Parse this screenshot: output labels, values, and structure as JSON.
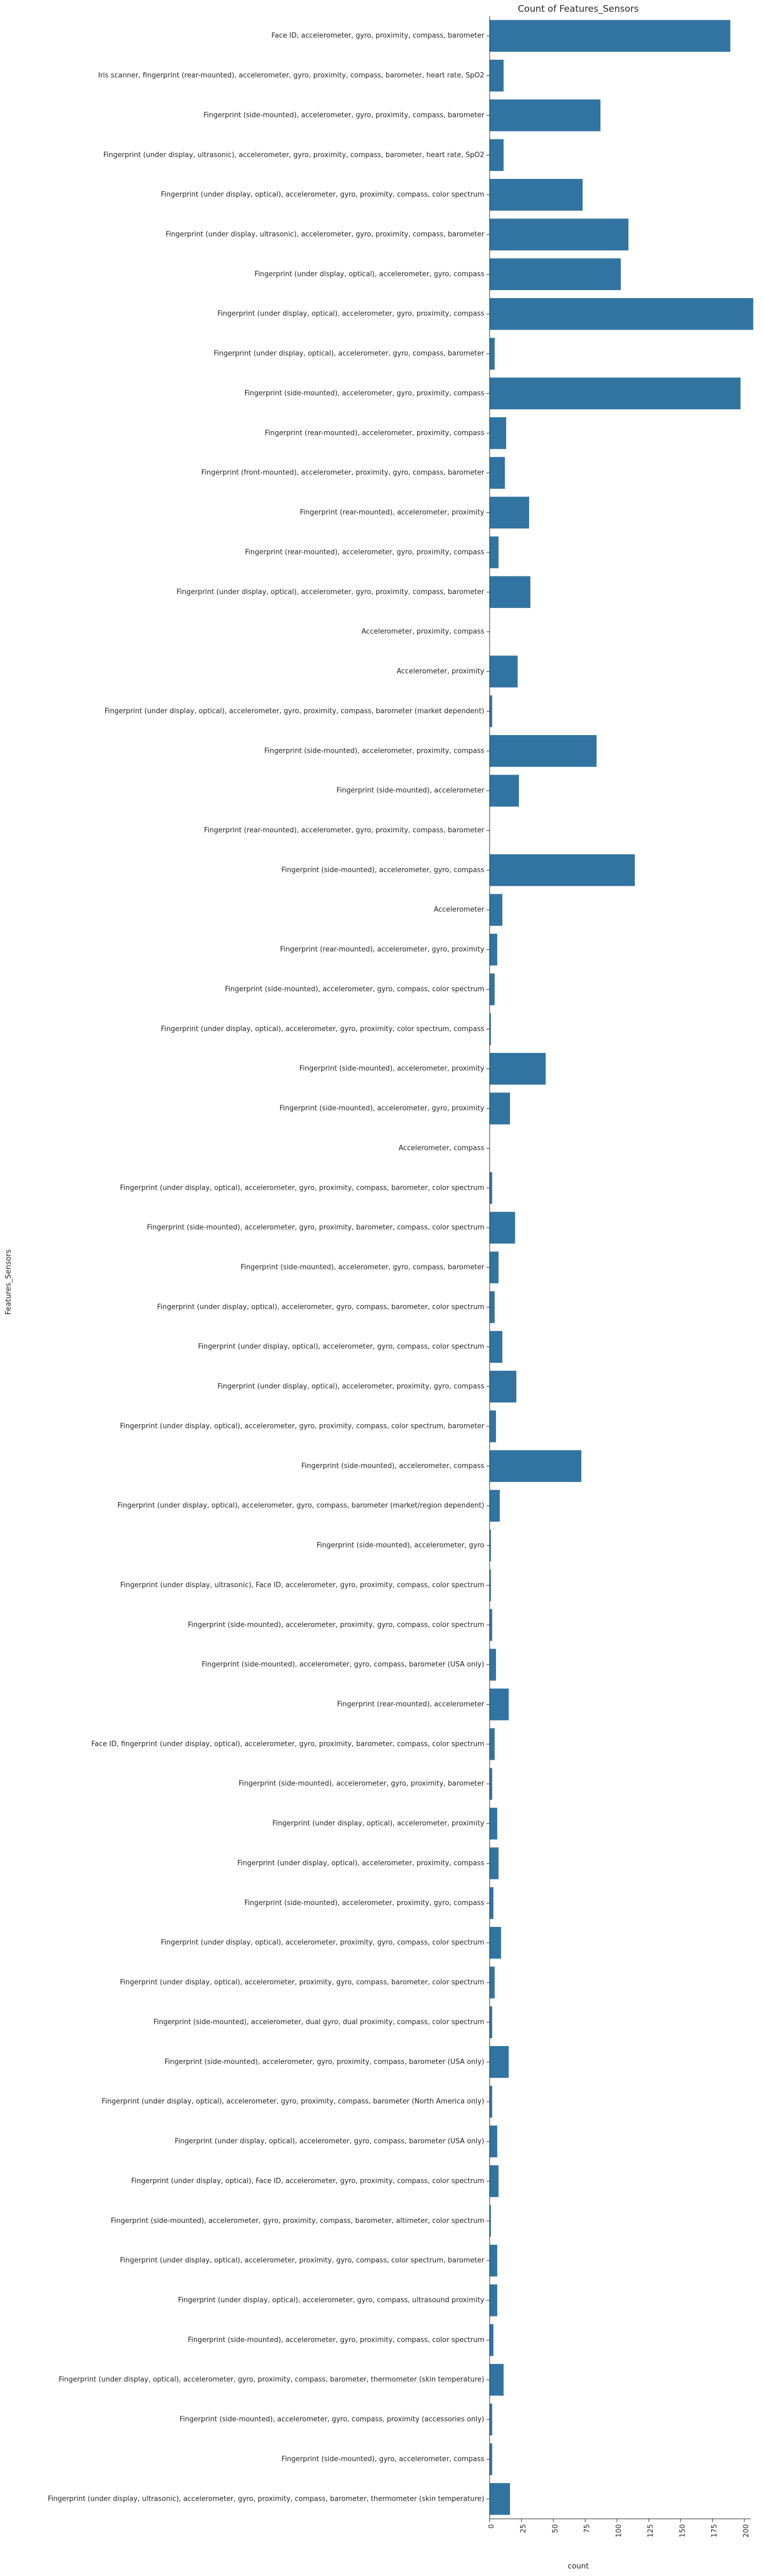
{
  "chart_data": {
    "type": "bar",
    "orientation": "horizontal",
    "title": "Count of Features_Sensors",
    "xlabel": "count",
    "ylabel": "Features_Sensors",
    "xlim": [
      0,
      205
    ],
    "xticks": [
      0,
      25,
      50,
      75,
      100,
      125,
      150,
      175,
      200
    ],
    "grid": false,
    "legend": "none",
    "bar_color": "#3274a1",
    "categories": [
      "Face ID, accelerometer, gyro, proximity, compass, barometer",
      "Iris scanner, fingerprint (rear-mounted), accelerometer, gyro, proximity, compass, barometer, heart rate, SpO2",
      "Fingerprint (side-mounted), accelerometer, gyro, proximity, compass, barometer",
      "Fingerprint (under display, ultrasonic), accelerometer, gyro, proximity, compass, barometer, heart rate, SpO2",
      "Fingerprint (under display, optical), accelerometer, gyro, proximity, compass, color spectrum",
      "Fingerprint (under display, ultrasonic), accelerometer, gyro, proximity, compass, barometer",
      "Fingerprint (under display, optical), accelerometer, gyro, compass",
      "Fingerprint (under display, optical), accelerometer, gyro, proximity, compass",
      "Fingerprint (under display, optical), accelerometer, gyro, compass, barometer",
      "Fingerprint (side-mounted), accelerometer, gyro, proximity, compass",
      "Fingerprint (rear-mounted), accelerometer, proximity, compass",
      "Fingerprint (front-mounted), accelerometer, proximity, gyro, compass, barometer",
      "Fingerprint (rear-mounted), accelerometer, proximity",
      "Fingerprint (rear-mounted), accelerometer, gyro, proximity, compass",
      "Fingerprint (under display, optical), accelerometer, gyro, proximity, compass, barometer",
      "Accelerometer, proximity, compass",
      "Accelerometer, proximity",
      "Fingerprint (under display, optical), accelerometer, gyro, proximity, compass, barometer (market dependent)",
      "Fingerprint (side-mounted), accelerometer, proximity, compass",
      "Fingerprint (side-mounted), accelerometer",
      "Fingerprint (rear-mounted), accelerometer, gyro, proximity, compass, barometer",
      "Fingerprint (side-mounted), accelerometer, gyro, compass",
      "Accelerometer",
      "Fingerprint (rear-mounted), accelerometer, gyro, proximity",
      "Fingerprint (side-mounted), accelerometer, gyro, compass, color spectrum",
      "Fingerprint (under display, optical), accelerometer, gyro, proximity, color spectrum, compass",
      "Fingerprint (side-mounted), accelerometer, proximity",
      "Fingerprint (side-mounted), accelerometer, gyro, proximity",
      "Accelerometer, compass",
      "Fingerprint (under display, optical), accelerometer, gyro, proximity, compass, barometer, color spectrum",
      "Fingerprint (side-mounted), accelerometer, gyro, proximity, barometer, compass, color spectrum",
      "Fingerprint (side-mounted), accelerometer, gyro, compass, barometer",
      "Fingerprint (under display, optical), accelerometer, gyro, compass, barometer, color spectrum",
      "Fingerprint (under display, optical), accelerometer, gyro, compass, color spectrum",
      "Fingerprint (under display, optical), accelerometer, proximity, gyro, compass",
      "Fingerprint (under display, optical), accelerometer, gyro, proximity, compass, color spectrum, barometer",
      "Fingerprint (side-mounted), accelerometer, compass",
      "Fingerprint (under display, optical), accelerometer, gyro, compass, barometer (market/region dependent)",
      "Fingerprint (side-mounted), accelerometer, gyro",
      "Fingerprint (under display, ultrasonic), Face ID, accelerometer, gyro, proximity, compass, color spectrum",
      "Fingerprint (side-mounted), accelerometer, proximity, gyro, compass, color spectrum",
      "Fingerprint (side-mounted), accelerometer, gyro, compass, barometer (USA only)",
      "Fingerprint (rear-mounted), accelerometer",
      "Face ID, fingerprint (under display, optical), accelerometer, gyro, proximity, barometer, compass, color spectrum",
      "Fingerprint (side-mounted), accelerometer, gyro, proximity, barometer",
      "Fingerprint (under display, optical), accelerometer, proximity",
      "Fingerprint (under display, optical), accelerometer, proximity, compass",
      "Fingerprint (side-mounted), accelerometer, proximity, gyro, compass",
      "Fingerprint (under display, optical), accelerometer, proximity, gyro, compass, color spectrum",
      "Fingerprint (under display, optical), accelerometer, proximity, gyro, compass, barometer, color spectrum",
      "Fingerprint (side-mounted), accelerometer, dual gyro, dual proximity, compass, color spectrum",
      "Fingerprint (side-mounted), accelerometer, gyro, proximity, compass, barometer (USA only)",
      "Fingerprint (under display, optical), accelerometer, gyro, proximity, compass, barometer (North America only)",
      "Fingerprint (under display, optical), accelerometer, gyro, compass, barometer (USA only)",
      "Fingerprint (under display, optical), Face ID, accelerometer, gyro, proximity, compass, color spectrum",
      "Fingerprint (side-mounted), accelerometer, gyro, proximity, compass, barometer, altimeter, color spectrum",
      "Fingerprint (under display, optical), accelerometer, proximity, gyro, compass, color spectrum, barometer",
      "Fingerprint (under display, optical), accelerometer, gyro, compass, ultrasound proximity",
      "Fingerprint (side-mounted), accelerometer, gyro, proximity, compass, color spectrum",
      "Fingerprint (under display, optical), accelerometer, gyro, proximity, compass, barometer, thermometer (skin temperature)",
      "Fingerprint (side-mounted), accelerometer, gyro, compass, proximity (accessories only)",
      "Fingerprint (side-mounted), gyro, accelerometer, compass",
      "Fingerprint (under display, ultrasonic), accelerometer, gyro, proximity, compass, barometer, thermometer (skin temperature)"
    ],
    "values": [
      189,
      11,
      87,
      11,
      73,
      109,
      103,
      207,
      4,
      197,
      13,
      12,
      31,
      7,
      32,
      0,
      22,
      2,
      84,
      23,
      0,
      114,
      10,
      6,
      4,
      1,
      44,
      16,
      0,
      2,
      20,
      7,
      4,
      10,
      21,
      5,
      72,
      8,
      1,
      1,
      2,
      5,
      15,
      4,
      2,
      6,
      7,
      3,
      9,
      4,
      2,
      15,
      2,
      6,
      7,
      1,
      6,
      6,
      3,
      11,
      2,
      2,
      16
    ]
  }
}
